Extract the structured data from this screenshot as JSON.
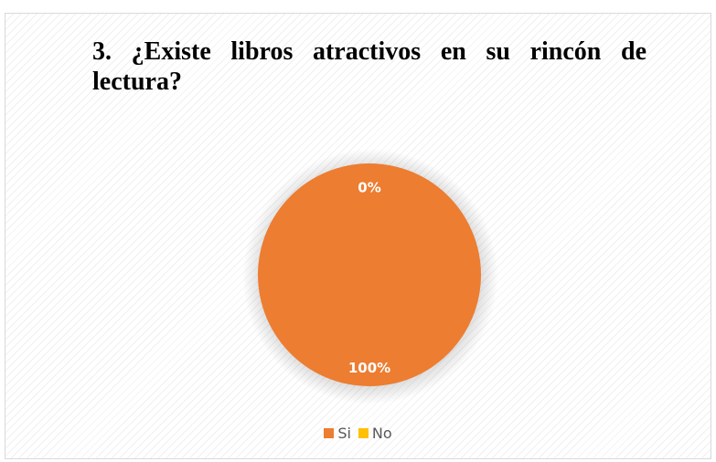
{
  "chart_data": {
    "type": "pie",
    "title": "3. ¿Existe libros atractivos en su rincón de lectura?",
    "categories": [
      "Si",
      "No"
    ],
    "values": [
      100,
      0
    ],
    "data_labels": [
      "100%",
      "0%"
    ],
    "colors": [
      "#ed7d31",
      "#ffc000"
    ],
    "legend_position": "bottom"
  }
}
